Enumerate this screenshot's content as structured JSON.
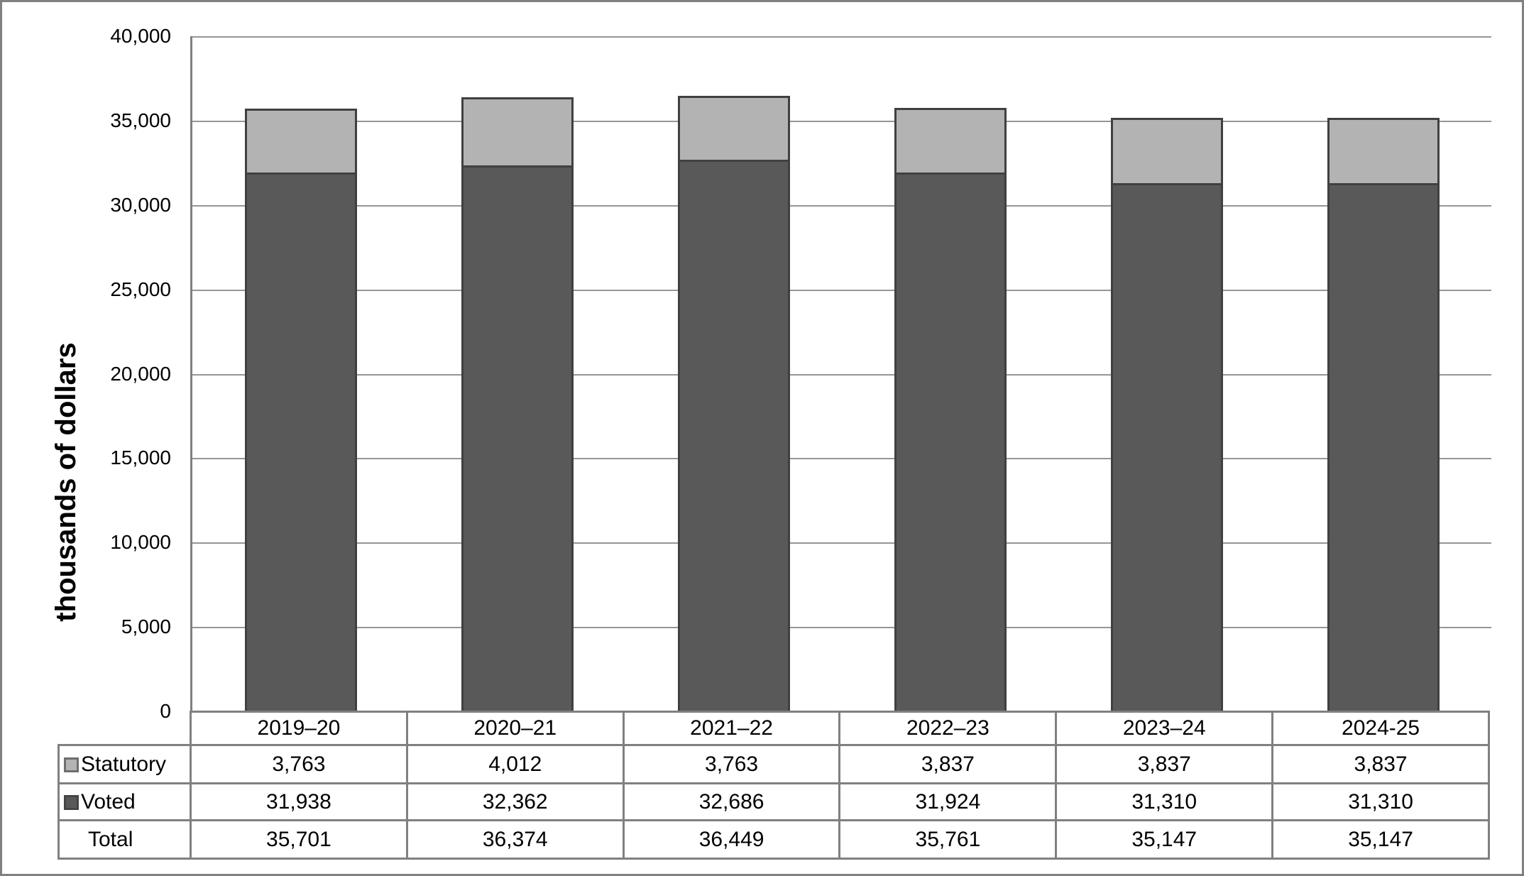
{
  "chart_data": {
    "type": "bar",
    "stacked": true,
    "title": "",
    "categories": [
      "2019–20",
      "2020–21",
      "2021–22",
      "2022–23",
      "2023–24",
      "2024-25"
    ],
    "series": [
      {
        "name": "Statutory",
        "values": [
          3763,
          4012,
          3763,
          3837,
          3837,
          3837
        ]
      },
      {
        "name": "Voted",
        "values": [
          31938,
          32362,
          32686,
          31924,
          31310,
          31310
        ]
      }
    ],
    "totals": [
      35701,
      36374,
      36449,
      35761,
      35147,
      35147
    ],
    "xlabel": "",
    "ylabel": "thousands of dollars",
    "ylim": [
      0,
      40000
    ],
    "ytick_interval": 5000,
    "grid": true,
    "legend_position": "left column of data table below chart"
  },
  "y_axis": {
    "title": "thousands of dollars",
    "tick_labels": [
      "0",
      "5,000",
      "10,000",
      "15,000",
      "20,000",
      "25,000",
      "30,000",
      "35,000",
      "40,000"
    ]
  },
  "table": {
    "header_labels": [
      "2019–20",
      "2020–21",
      "2021–22",
      "2022–23",
      "2023–24",
      "2024-25"
    ],
    "rows": [
      {
        "label": "Statutory",
        "key": "statutory",
        "values": [
          "3,763",
          "4,012",
          "3,763",
          "3,837",
          "3,837",
          "3,837"
        ]
      },
      {
        "label": "Voted",
        "key": "voted",
        "values": [
          "31,938",
          "32,362",
          "32,686",
          "31,924",
          "31,310",
          "31,310"
        ]
      },
      {
        "label": "Total",
        "key": null,
        "values": [
          "35,701",
          "36,374",
          "36,449",
          "35,761",
          "35,147",
          "35,147"
        ]
      }
    ]
  },
  "colors": {
    "statutory_fill": "#b3b3b3",
    "voted_fill": "#595959",
    "bar_border": "#404040",
    "gridline": "#969696",
    "axis": "#808080",
    "table_border": "#808080",
    "frame_border": "#808080",
    "text": "#000000",
    "background": "#ffffff"
  }
}
